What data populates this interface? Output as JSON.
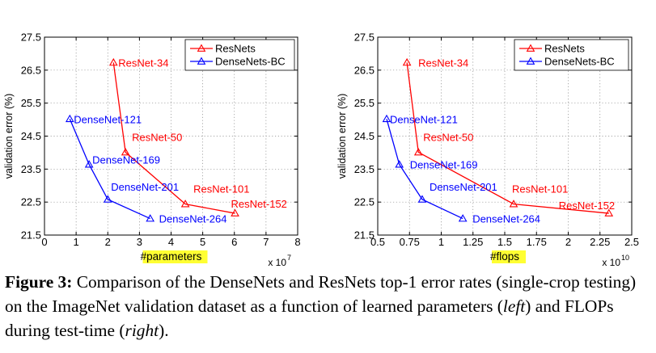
{
  "chart_data": [
    {
      "type": "line",
      "xlabel_prefix": "#",
      "xlabel_highlight": "parameters",
      "ylabel": "validation error (%)",
      "x_multiplier": "x 10",
      "x_multiplier_exp": "7",
      "xlim": [
        0,
        8
      ],
      "ylim": [
        21.5,
        27.5
      ],
      "xticks": [
        "0",
        "1",
        "2",
        "3",
        "4",
        "5",
        "6",
        "7",
        "8"
      ],
      "xtick_values": [
        0,
        1,
        2,
        3,
        4,
        5,
        6,
        7,
        8
      ],
      "yticks": [
        "21.5",
        "22.5",
        "23.5",
        "24.5",
        "25.5",
        "26.5",
        "27.5"
      ],
      "ytick_values": [
        21.5,
        22.5,
        23.5,
        24.5,
        25.5,
        26.5,
        27.5
      ],
      "grid": true,
      "legend": "top-right",
      "series": [
        {
          "name": "ResNets",
          "color": "#ff0000",
          "points": [
            {
              "x": 2.18,
              "y": 26.73,
              "label": "ResNet-34"
            },
            {
              "x": 2.56,
              "y": 24.01,
              "label": "ResNet-50"
            },
            {
              "x": 4.45,
              "y": 22.44,
              "label": "ResNet-101"
            },
            {
              "x": 6.02,
              "y": 22.16,
              "label": "ResNet-152"
            }
          ]
        },
        {
          "name": "DenseNets-BC",
          "color": "#0000ff",
          "points": [
            {
              "x": 0.8,
              "y": 25.02,
              "label": "DenseNet-121"
            },
            {
              "x": 1.41,
              "y": 23.64,
              "label": "DenseNet-169"
            },
            {
              "x": 2.0,
              "y": 22.58,
              "label": "DenseNet-201"
            },
            {
              "x": 3.34,
              "y": 22.0,
              "label": "DenseNet-264"
            }
          ]
        }
      ]
    },
    {
      "type": "line",
      "xlabel_prefix": "#",
      "xlabel_highlight": "flops",
      "ylabel": "validation error (%)",
      "x_multiplier": "x 10",
      "x_multiplier_exp": "10",
      "xlim": [
        0.5,
        2.5
      ],
      "ylim": [
        21.5,
        27.5
      ],
      "xticks": [
        "0.5",
        "0.75",
        "1",
        "1.25",
        "1.5",
        "1.75",
        "2",
        "2.25",
        "2.5"
      ],
      "xtick_values": [
        0.5,
        0.75,
        1,
        1.25,
        1.5,
        1.75,
        2,
        2.25,
        2.5
      ],
      "yticks": [
        "21.5",
        "22.5",
        "23.5",
        "24.5",
        "25.5",
        "26.5",
        "27.5"
      ],
      "ytick_values": [
        21.5,
        22.5,
        23.5,
        24.5,
        25.5,
        26.5,
        27.5
      ],
      "grid": true,
      "legend": "top-right",
      "series": [
        {
          "name": "ResNets",
          "color": "#ff0000",
          "points": [
            {
              "x": 0.73,
              "y": 26.73,
              "label": "ResNet-34"
            },
            {
              "x": 0.82,
              "y": 24.01,
              "label": "ResNet-50"
            },
            {
              "x": 1.57,
              "y": 22.44,
              "label": "ResNet-101"
            },
            {
              "x": 2.32,
              "y": 22.16,
              "label": "ResNet-152"
            }
          ]
        },
        {
          "name": "DenseNets-BC",
          "color": "#0000ff",
          "points": [
            {
              "x": 0.57,
              "y": 25.02,
              "label": "DenseNet-121"
            },
            {
              "x": 0.67,
              "y": 23.64,
              "label": "DenseNet-169"
            },
            {
              "x": 0.85,
              "y": 22.58,
              "label": "DenseNet-201"
            },
            {
              "x": 1.17,
              "y": 22.0,
              "label": "DenseNet-264"
            }
          ]
        }
      ]
    }
  ],
  "caption": {
    "label": "Figure 3:",
    "part1": " Comparison of the DenseNets and ResNets top-1 error rates (single-crop testing) on the ImageNet validation dataset as a function of learned parameters (",
    "left": "left",
    "part2": ") and FLOPs during test-time (",
    "right": "right",
    "part3": ")."
  }
}
